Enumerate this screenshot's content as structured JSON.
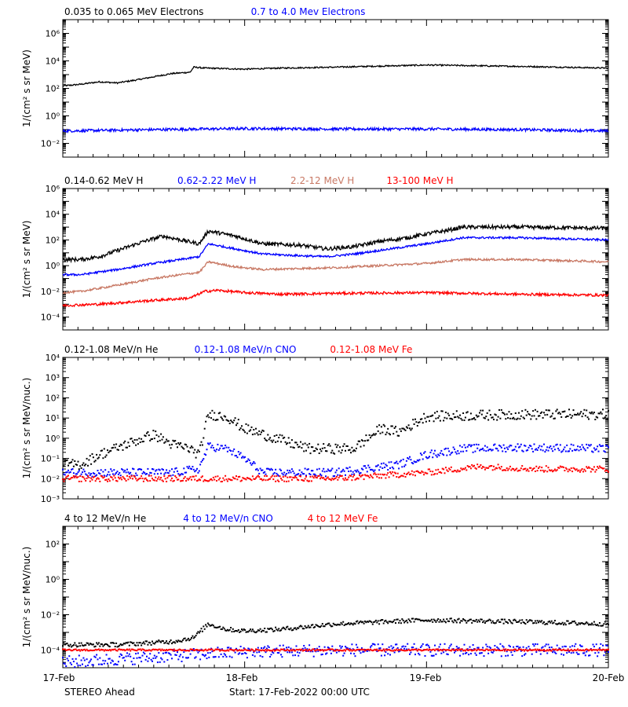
{
  "footer": {
    "left": "STEREO Ahead",
    "center": "Start: 17-Feb-2022 00:00 UTC"
  },
  "x_tick_labels": [
    "17-Feb",
    "18-Feb",
    "19-Feb",
    "20-Feb"
  ],
  "chart_data": [
    {
      "type": "scatter",
      "title": "",
      "ylabel": "1/(cm² s sr MeV)",
      "yscale": "log",
      "ylim": [
        0.001,
        10000000
      ],
      "yticks": [
        {
          "v": 0.01,
          "label": "10⁻²"
        },
        {
          "v": 1,
          "label": "10⁰"
        },
        {
          "v": 100,
          "label": "10²"
        },
        {
          "v": 10000,
          "label": "10⁴"
        },
        {
          "v": 1000000,
          "label": "10⁶"
        }
      ],
      "x_unit": "days since 17-Feb-2022 00:00 UTC",
      "xlim": [
        0,
        3
      ],
      "legend": [
        {
          "name": "0.035 to 0.065 MeV Electrons",
          "color": "#000000"
        },
        {
          "name": "0.7 to 4.0 Mev Electrons",
          "color": "#0000ff"
        }
      ],
      "series": [
        {
          "name": "0.035 to 0.065 MeV Electrons",
          "color": "#000000",
          "style": "line",
          "noise": 0.05,
          "x": [
            0,
            0.1,
            0.2,
            0.3,
            0.4,
            0.5,
            0.6,
            0.7,
            0.72,
            0.78,
            1.0,
            1.2,
            1.5,
            2.0,
            2.5,
            3.0
          ],
          "y": [
            150,
            200,
            300,
            250,
            400,
            700,
            1200,
            1500,
            3500,
            3000,
            2500,
            3000,
            3500,
            5000,
            4000,
            3000
          ]
        },
        {
          "name": "0.7 to 4.0 Mev Electrons",
          "color": "#0000ff",
          "style": "line",
          "noise": 0.1,
          "x": [
            0,
            0.5,
            1.0,
            1.5,
            2.0,
            2.5,
            3.0
          ],
          "y": [
            0.08,
            0.1,
            0.12,
            0.11,
            0.11,
            0.1,
            0.08
          ]
        }
      ]
    },
    {
      "type": "scatter",
      "title": "",
      "ylabel": "1/(cm² s sr MeV)",
      "yscale": "log",
      "ylim": [
        1e-05,
        1000000
      ],
      "yticks": [
        {
          "v": 0.0001,
          "label": "10⁻⁴"
        },
        {
          "v": 0.01,
          "label": "10⁻²"
        },
        {
          "v": 1,
          "label": "10⁰"
        },
        {
          "v": 100,
          "label": "10²"
        },
        {
          "v": 10000,
          "label": "10⁴"
        },
        {
          "v": 1000000,
          "label": "10⁶"
        }
      ],
      "x_unit": "days since 17-Feb-2022 00:00 UTC",
      "xlim": [
        0,
        3
      ],
      "legend": [
        {
          "name": "0.14-0.62 MeV H",
          "color": "#000000"
        },
        {
          "name": "0.62-2.22 MeV H",
          "color": "#0000ff"
        },
        {
          "name": "2.2-12 MeV H",
          "color": "#c87864"
        },
        {
          "name": "13-100 MeV H",
          "color": "#ff0000"
        }
      ],
      "series": [
        {
          "name": "0.14-0.62 MeV H",
          "color": "#000000",
          "style": "line",
          "noise": 0.15,
          "x": [
            0,
            0.1,
            0.2,
            0.3,
            0.45,
            0.55,
            0.65,
            0.75,
            0.8,
            0.95,
            1.1,
            1.3,
            1.45,
            1.6,
            1.75,
            1.9,
            2.0,
            2.1,
            2.2,
            2.5,
            3.0
          ],
          "y": [
            3,
            3,
            5,
            15,
            80,
            200,
            100,
            50,
            500,
            200,
            50,
            40,
            20,
            30,
            80,
            150,
            300,
            500,
            1000,
            1000,
            800
          ]
        },
        {
          "name": "0.62-2.22 MeV H",
          "color": "#0000ff",
          "style": "line",
          "noise": 0.08,
          "x": [
            0,
            0.1,
            0.3,
            0.5,
            0.65,
            0.75,
            0.8,
            0.95,
            1.1,
            1.3,
            1.45,
            1.6,
            1.8,
            2.0,
            2.2,
            2.5,
            3.0
          ],
          "y": [
            0.2,
            0.2,
            0.5,
            1.5,
            3,
            5,
            50,
            20,
            8,
            6,
            5,
            8,
            20,
            50,
            150,
            150,
            100
          ]
        },
        {
          "name": "2.2-12 MeV H",
          "color": "#c87864",
          "style": "line",
          "noise": 0.08,
          "x": [
            0,
            0.1,
            0.3,
            0.5,
            0.65,
            0.75,
            0.8,
            0.95,
            1.1,
            1.3,
            1.5,
            2.0,
            2.2,
            2.5,
            3.0
          ],
          "y": [
            0.008,
            0.01,
            0.03,
            0.1,
            0.2,
            0.3,
            2,
            0.8,
            0.5,
            0.6,
            0.7,
            1.5,
            3,
            3,
            2
          ]
        },
        {
          "name": "13-100 MeV H",
          "color": "#ff0000",
          "style": "line",
          "noise": 0.1,
          "x": [
            0,
            0.2,
            0.5,
            0.7,
            0.78,
            0.85,
            1.0,
            1.2,
            1.5,
            2.0,
            2.5,
            3.0
          ],
          "y": [
            0.0008,
            0.001,
            0.002,
            0.003,
            0.01,
            0.012,
            0.008,
            0.006,
            0.007,
            0.008,
            0.006,
            0.005
          ]
        }
      ]
    },
    {
      "type": "scatter",
      "title": "",
      "ylabel": "1/(cm² s sr MeV/nuc.)",
      "yscale": "log",
      "ylim": [
        0.001,
        10000
      ],
      "yticks": [
        {
          "v": 0.001,
          "label": "10⁻³"
        },
        {
          "v": 0.01,
          "label": "10⁻²"
        },
        {
          "v": 0.1,
          "label": "10⁻¹"
        },
        {
          "v": 1,
          "label": "10⁰"
        },
        {
          "v": 10,
          "label": "10¹"
        },
        {
          "v": 100,
          "label": "10²"
        },
        {
          "v": 1000,
          "label": "10³"
        },
        {
          "v": 10000,
          "label": "10⁴"
        }
      ],
      "x_unit": "days since 17-Feb-2022 00:00 UTC",
      "xlim": [
        0,
        3
      ],
      "legend": [
        {
          "name": "0.12-1.08 MeV/n He",
          "color": "#000000"
        },
        {
          "name": "0.12-1.08 MeV/n CNO",
          "color": "#0000ff"
        },
        {
          "name": "0.12-1.08 MeV Fe",
          "color": "#ff0000"
        }
      ],
      "series": [
        {
          "name": "0.12-1.08 MeV/n He",
          "color": "#000000",
          "style": "dots",
          "noise": 0.25,
          "x": [
            0,
            0.1,
            0.2,
            0.35,
            0.5,
            0.6,
            0.7,
            0.75,
            0.8,
            0.9,
            1.0,
            1.2,
            1.35,
            1.5,
            1.6,
            1.75,
            1.85,
            2.0,
            2.5,
            3.0
          ],
          "y": [
            0.05,
            0.05,
            0.15,
            0.5,
            1.5,
            0.5,
            0.3,
            0.15,
            15,
            12,
            3,
            0.8,
            0.3,
            0.3,
            0.3,
            3,
            2,
            12,
            15,
            15
          ]
        },
        {
          "name": "0.12-1.08 MeV/n CNO",
          "color": "#0000ff",
          "style": "dots",
          "noise": 0.2,
          "x": [
            0.4,
            0.6,
            0.75,
            0.8,
            0.9,
            1.0,
            1.1,
            1.5,
            1.85,
            2.0,
            2.2,
            2.5,
            3.0
          ],
          "y": [
            0.02,
            0.02,
            0.03,
            0.4,
            0.3,
            0.1,
            0.02,
            0.02,
            0.05,
            0.15,
            0.3,
            0.35,
            0.3
          ]
        },
        {
          "name": "0.12-1.08 MeV Fe",
          "color": "#ff0000",
          "style": "dots",
          "noise": 0.15,
          "x": [
            0,
            0.5,
            1.0,
            1.5,
            1.8,
            2.0,
            2.3,
            2.6,
            3.0
          ],
          "y": [
            0.01,
            0.01,
            0.01,
            0.01,
            0.015,
            0.02,
            0.04,
            0.03,
            0.03
          ]
        }
      ]
    },
    {
      "type": "scatter",
      "title": "",
      "ylabel": "1/(cm² s sr MeV/nuc.)",
      "yscale": "log",
      "ylim": [
        1e-05,
        1000
      ],
      "yticks": [
        {
          "v": 0.0001,
          "label": "10⁻⁴"
        },
        {
          "v": 0.01,
          "label": "10⁻²"
        },
        {
          "v": 1,
          "label": "10⁰"
        },
        {
          "v": 100,
          "label": "10²"
        }
      ],
      "x_unit": "days since 17-Feb-2022 00:00 UTC",
      "xlim": [
        0,
        3
      ],
      "legend": [
        {
          "name": "4 to 12 MeV/n He",
          "color": "#000000"
        },
        {
          "name": "4 to 12 MeV/n CNO",
          "color": "#0000ff"
        },
        {
          "name": "4 to 12 MeV Fe",
          "color": "#ff0000"
        }
      ],
      "series": [
        {
          "name": "4 to 12 MeV/n He",
          "color": "#000000",
          "style": "dots",
          "noise": 0.12,
          "x": [
            0,
            0.3,
            0.6,
            0.72,
            0.8,
            0.9,
            1.0,
            1.2,
            1.5,
            2.0,
            2.5,
            3.0
          ],
          "y": [
            0.0002,
            0.0002,
            0.0003,
            0.0005,
            0.003,
            0.0015,
            0.0012,
            0.0015,
            0.003,
            0.005,
            0.004,
            0.003
          ]
        },
        {
          "name": "4 to 12 MeV/n CNO",
          "color": "#0000ff",
          "style": "dots",
          "noise": 0.35,
          "x": [
            0,
            0.5,
            1.0,
            1.5,
            2.0,
            2.5,
            3.0
          ],
          "y": [
            2e-05,
            4e-05,
            8e-05,
            0.0001,
            0.0001,
            0.0001,
            0.0001
          ]
        },
        {
          "name": "4 to 12 MeV Fe",
          "color": "#ff0000",
          "style": "dots",
          "noise": 0.05,
          "x": [
            0,
            1.0,
            2.0,
            3.0
          ],
          "y": [
            0.0001,
            0.0001,
            0.0001,
            0.0001
          ]
        }
      ]
    }
  ]
}
